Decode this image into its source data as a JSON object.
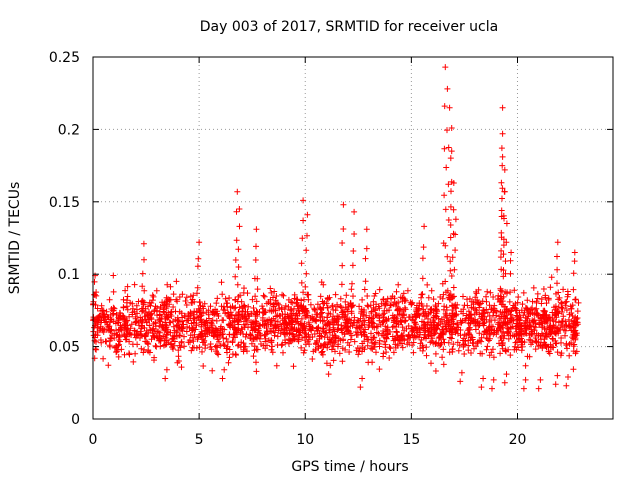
{
  "chart_data": {
    "type": "scatter",
    "title": "Day 003 of 2017, SRMTID for receiver ucla",
    "xlabel": "GPS time / hours",
    "ylabel": "SRMTID / TECUs",
    "xlim": [
      0,
      24.5
    ],
    "ylim": [
      0,
      0.25
    ],
    "x_ticks": [
      0,
      5,
      10,
      15,
      20
    ],
    "x_tick_labels": [
      "0",
      "5",
      "10",
      "15",
      "20"
    ],
    "y_ticks": [
      0,
      0.05,
      0.1,
      0.15,
      0.2,
      0.25
    ],
    "y_tick_labels": [
      "0",
      "0.05",
      "0.1",
      "0.15",
      "0.2",
      "0.25"
    ],
    "grid": true,
    "marker": "+",
    "series": [
      {
        "name": "SRMTID",
        "color": "#ff0000",
        "x_range": [
          0.0,
          22.9
        ],
        "baseline_range": [
          0.02,
          0.1
        ],
        "typical_mean": 0.065,
        "approx_point_count": 2400,
        "peaks": [
          {
            "x": 0.1,
            "y": 0.099
          },
          {
            "x": 2.4,
            "y": 0.121
          },
          {
            "x": 5.0,
            "y": 0.122
          },
          {
            "x": 6.8,
            "y": 0.157
          },
          {
            "x": 6.9,
            "y": 0.145
          },
          {
            "x": 7.7,
            "y": 0.131
          },
          {
            "x": 9.9,
            "y": 0.151
          },
          {
            "x": 10.1,
            "y": 0.141
          },
          {
            "x": 11.8,
            "y": 0.148
          },
          {
            "x": 12.3,
            "y": 0.143
          },
          {
            "x": 12.9,
            "y": 0.131
          },
          {
            "x": 15.6,
            "y": 0.133
          },
          {
            "x": 16.6,
            "y": 0.243
          },
          {
            "x": 16.7,
            "y": 0.228
          },
          {
            "x": 16.8,
            "y": 0.215
          },
          {
            "x": 16.9,
            "y": 0.201
          },
          {
            "x": 16.9,
            "y": 0.185
          },
          {
            "x": 17.0,
            "y": 0.163
          },
          {
            "x": 17.1,
            "y": 0.138
          },
          {
            "x": 19.3,
            "y": 0.215
          },
          {
            "x": 19.3,
            "y": 0.197
          },
          {
            "x": 19.3,
            "y": 0.181
          },
          {
            "x": 19.4,
            "y": 0.172
          },
          {
            "x": 19.4,
            "y": 0.157
          },
          {
            "x": 19.5,
            "y": 0.135
          },
          {
            "x": 19.7,
            "y": 0.115
          },
          {
            "x": 21.9,
            "y": 0.122
          },
          {
            "x": 22.7,
            "y": 0.115
          }
        ],
        "troughs": [
          {
            "x": 3.4,
            "y": 0.028
          },
          {
            "x": 6.1,
            "y": 0.028
          },
          {
            "x": 11.1,
            "y": 0.031
          },
          {
            "x": 12.6,
            "y": 0.022
          },
          {
            "x": 17.3,
            "y": 0.026
          },
          {
            "x": 18.3,
            "y": 0.022
          },
          {
            "x": 18.8,
            "y": 0.021
          },
          {
            "x": 19.4,
            "y": 0.025
          },
          {
            "x": 20.3,
            "y": 0.021
          },
          {
            "x": 21.0,
            "y": 0.021
          },
          {
            "x": 21.8,
            "y": 0.024
          },
          {
            "x": 22.3,
            "y": 0.023
          }
        ]
      }
    ]
  }
}
